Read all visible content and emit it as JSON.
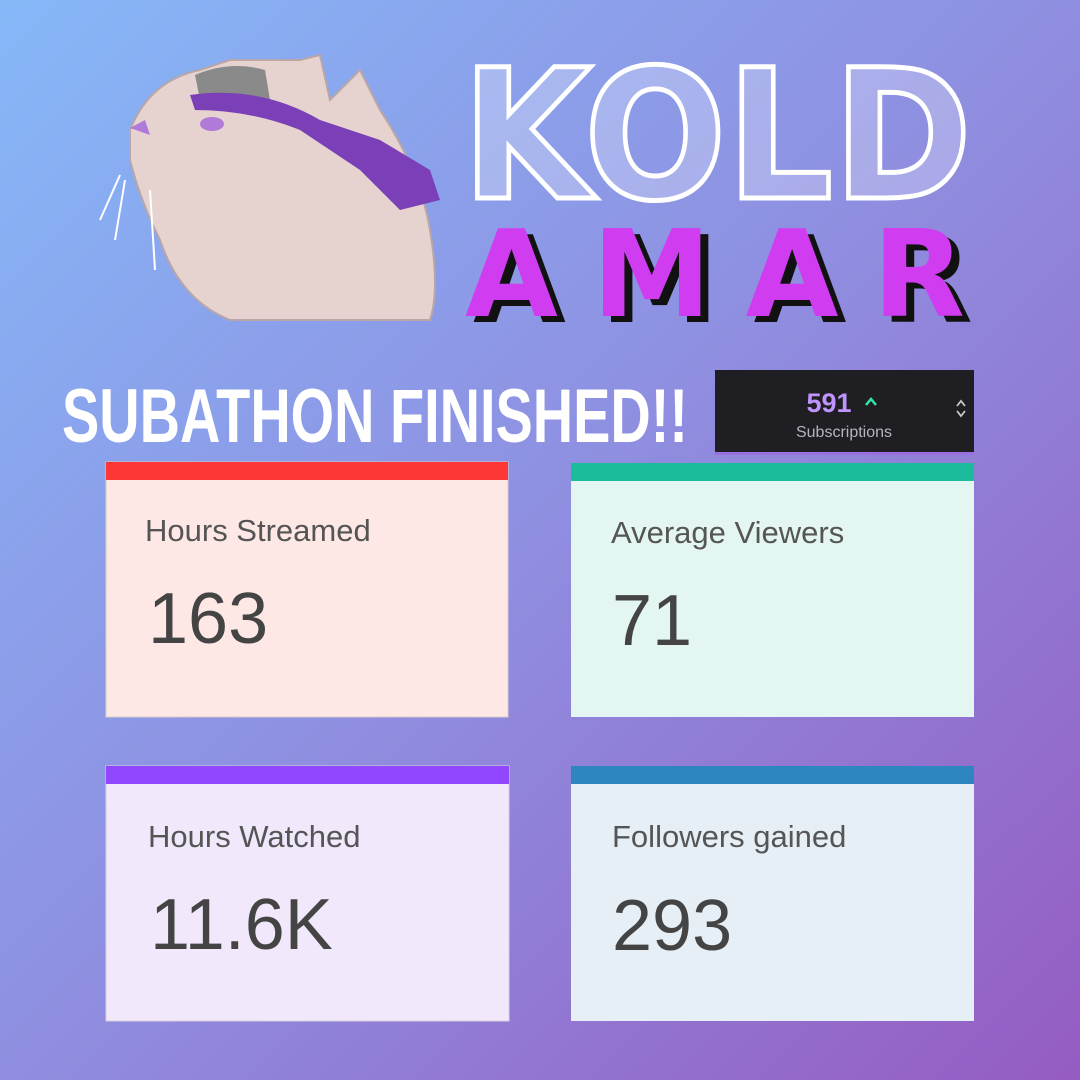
{
  "logo": {
    "line1": "KOLD",
    "line2": "AMAR"
  },
  "headline": "SUBATHON FINISHED!!",
  "widget": {
    "value": "591",
    "label": "Subscriptions"
  },
  "cards": [
    {
      "label": "Hours Streamed",
      "value": "163"
    },
    {
      "label": "Average Viewers",
      "value": "71"
    },
    {
      "label": "Hours Watched",
      "value": "11.6K"
    },
    {
      "label": "Followers gained",
      "value": "293"
    }
  ]
}
